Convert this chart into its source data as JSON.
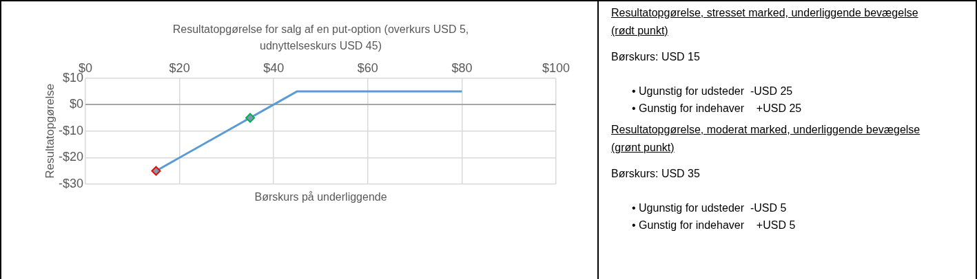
{
  "chart_data": {
    "type": "line",
    "title": "Resultatopgørelse for salg af en put-option (overkurs USD 5, udnyttelseskurs USD 45)",
    "xlabel": "Børskurs på underliggende",
    "ylabel": "Resultatopgørelse",
    "series": [
      {
        "type": "line",
        "x": [
          15,
          45,
          80
        ],
        "values": [
          -25,
          5,
          5
        ],
        "color": "#5b9bd5",
        "marker": "none"
      },
      {
        "type": "scatter",
        "x": [
          15
        ],
        "values": [
          -25
        ],
        "color": "#ff0000",
        "marker": "diamond"
      },
      {
        "type": "scatter",
        "x": [
          35
        ],
        "values": [
          -5
        ],
        "color": "#00b050",
        "marker": "diamond"
      }
    ],
    "xlim": [
      0,
      100
    ],
    "xticks": [
      {
        "value": 0,
        "label": "$0"
      },
      {
        "value": 20,
        "label": "$20"
      },
      {
        "value": 40,
        "label": "$40"
      },
      {
        "value": 60,
        "label": "$60"
      },
      {
        "value": 80,
        "label": "$80"
      },
      {
        "value": 100,
        "label": "$100"
      }
    ],
    "ylim": [
      -30,
      10
    ],
    "yticks": [
      {
        "value": -30,
        "label": "-$30"
      },
      {
        "value": -20,
        "label": "-$20"
      },
      {
        "value": -10,
        "label": "-$10"
      },
      {
        "value": 0,
        "label": "$0"
      },
      {
        "value": 10,
        "label": "$10"
      }
    ],
    "grid": true,
    "legend": false,
    "annotations": [
      "Resultatopgørelse, stresset marked, underliggende bevægelse (rødt punkt)",
      "Børskurs: USD 15",
      "• Ugunstig for udsteder  -USD 25",
      "• Gunstig for indehaver    +USD 25",
      "Resultatopgørelse, moderat marked, underliggende bevægelse (grønt punkt)",
      "Børskurs: USD 35",
      "• Ugunstig for udsteder  -USD 5",
      "• Gunstig for indehaver    +USD 5"
    ]
  }
}
